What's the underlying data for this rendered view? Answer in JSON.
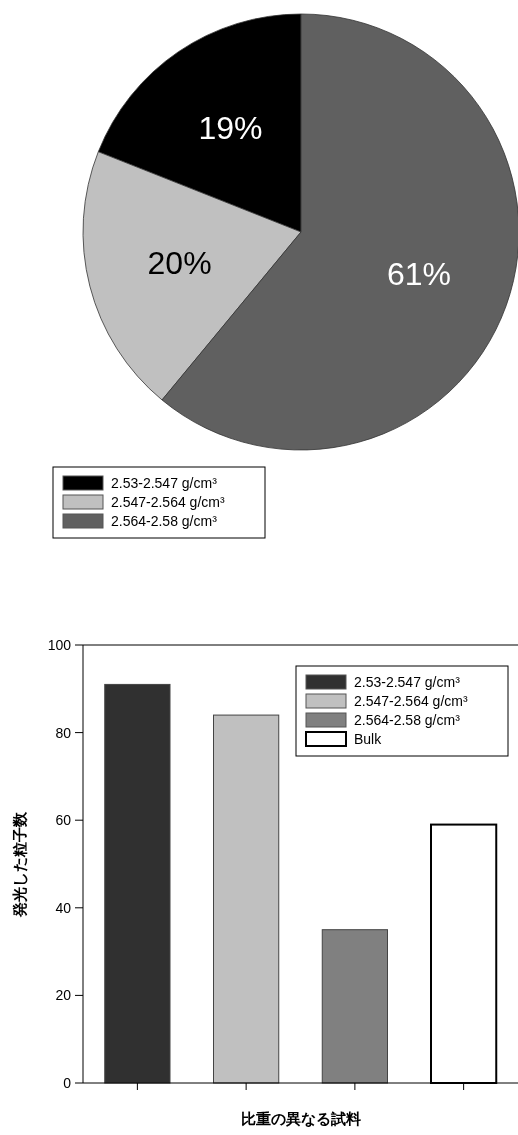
{
  "chart_data": [
    {
      "type": "pie",
      "categories": [
        "2.53-2.547 g/cm³",
        "2.547-2.564 g/cm³",
        "2.564-2.58 g/cm³"
      ],
      "values": [
        19,
        20,
        61
      ],
      "value_labels": [
        "19%",
        "20%",
        "61%"
      ],
      "colors": [
        "#000000",
        "#c0c0c0",
        "#606060"
      ],
      "legend": "bottom left"
    },
    {
      "type": "bar",
      "categories": [
        null,
        null,
        null,
        null
      ],
      "xlabel": "比重の異なる試料",
      "ylabel": "発光した粒子数",
      "ylim": [
        0,
        100
      ],
      "yticks": [
        0,
        20,
        40,
        60,
        80,
        100
      ],
      "legend": "top right",
      "series": [
        {
          "name": "2.53-2.547 g/cm³",
          "color": "#303030",
          "values": [
            91,
            null,
            null,
            null
          ]
        },
        {
          "name": "2.547-2.564 g/cm³",
          "color": "#c0c0c0",
          "values": [
            null,
            84,
            null,
            null
          ]
        },
        {
          "name": "2.564-2.58 g/cm³",
          "color": "#808080",
          "values": [
            null,
            null,
            35,
            null
          ]
        },
        {
          "name": "Bulk",
          "color": "#ffffff",
          "values": [
            null,
            null,
            null,
            59
          ]
        }
      ]
    }
  ]
}
